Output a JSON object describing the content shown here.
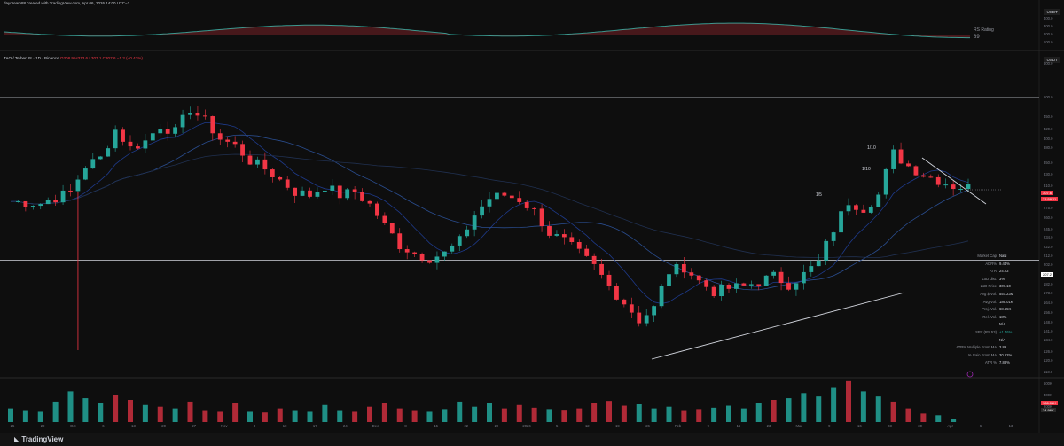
{
  "header": {
    "created_text": "daydream88 created with TradingView.com, Apr 06, 2026 14:00 UTC−2"
  },
  "top_panel": {
    "unit": "USDT",
    "rs_label": "RS Rating",
    "rs_value": "89",
    "ticks": [
      "400.0",
      "300.0",
      "200.0",
      "100.0"
    ]
  },
  "main_panel": {
    "unit": "USDT",
    "symbol": "TAO / TetherUS · 1D · Binance",
    "ohlc": "O308.9 H313.6 L307.1 C307.6 −1.3 (−0.42%)",
    "y_ticks": [
      "600.0",
      "500.0",
      "450.0",
      "420.0",
      "400.0",
      "380.0",
      "350.0",
      "330.0",
      "310.0",
      "290.0",
      "275.0",
      "260.0",
      "245.0",
      "234.0",
      "222.0",
      "212.0",
      "202.0",
      "192.0",
      "182.0",
      "173.0",
      "164.0",
      "156.0",
      "148.0",
      "141.0",
      "134.0",
      "126.0",
      "120.0",
      "113.0"
    ],
    "price_tags": [
      {
        "label": "307.6",
        "color": "#f23645"
      },
      {
        "label": "21:59:11",
        "color": "#f23645"
      },
      {
        "label": "207.2",
        "color": "#ffffff"
      }
    ]
  },
  "stats": [
    {
      "k": "Market Cap",
      "v": "NaN"
    },
    {
      "k": "ADR%",
      "v": "9.44%"
    },
    {
      "k": "ATR",
      "v": "24.23"
    },
    {
      "k": "LoD dist.",
      "v": "3%"
    },
    {
      "k": "LoD Price",
      "v": "307.10"
    },
    {
      "k": "Avg $ Vol.",
      "v": "557.23M"
    },
    {
      "k": "Avg Vol.",
      "v": "186.01K"
    },
    {
      "k": "Proj. Vol.",
      "v": "68.65K"
    },
    {
      "k": "Rel. Vol.",
      "v": "18%"
    },
    {
      "k": "",
      "v": "N/A"
    },
    {
      "k": "SPY (RS 53)",
      "v": "+1.46%"
    },
    {
      "k": "",
      "v": "N/A"
    },
    {
      "k": "ATR% Multiple From MA",
      "v": "3.89"
    },
    {
      "k": "% Gain From MA",
      "v": "30.62%"
    },
    {
      "k": "ATR %",
      "v": "7.88%"
    }
  ],
  "volume_panel": {
    "ticks": [
      "600K",
      "400K",
      "200K"
    ],
    "tags": [
      "186.01K",
      "34.96K"
    ]
  },
  "annotations": [
    "1/10",
    "1/10",
    "1/5"
  ],
  "footer": {
    "brand": "TradingView"
  },
  "chart_data": {
    "type": "candlestick",
    "symbol": "TAO/USDT",
    "x_labels": [
      "25",
      "29",
      "Oct",
      "6",
      "13",
      "20",
      "27",
      "Nov",
      "3",
      "10",
      "17",
      "24",
      "Dec",
      "8",
      "15",
      "22",
      "29",
      "2026",
      "5",
      "12",
      "19",
      "26",
      "Feb",
      "9",
      "16",
      "23",
      "Mar",
      "9",
      "16",
      "23",
      "30",
      "Apr",
      "6",
      "13"
    ],
    "horizontal_levels": [
      500.0,
      207.2
    ],
    "ylim": [
      113,
      600
    ],
    "close_path_approx": [
      [
        0,
        285
      ],
      [
        4,
        282
      ],
      [
        8,
        300
      ],
      [
        10,
        345
      ],
      [
        12,
        360
      ],
      [
        14,
        420
      ],
      [
        16,
        380
      ],
      [
        18,
        395
      ],
      [
        20,
        430
      ],
      [
        22,
        415
      ],
      [
        24,
        470
      ],
      [
        26,
        440
      ],
      [
        28,
        400
      ],
      [
        30,
        385
      ],
      [
        32,
        355
      ],
      [
        34,
        340
      ],
      [
        36,
        320
      ],
      [
        38,
        300
      ],
      [
        40,
        295
      ],
      [
        42,
        310
      ],
      [
        44,
        295
      ],
      [
        46,
        300
      ],
      [
        48,
        280
      ],
      [
        50,
        250
      ],
      [
        52,
        225
      ],
      [
        54,
        215
      ],
      [
        56,
        210
      ],
      [
        58,
        215
      ],
      [
        60,
        230
      ],
      [
        62,
        265
      ],
      [
        64,
        290
      ],
      [
        66,
        295
      ],
      [
        68,
        288
      ],
      [
        70,
        270
      ],
      [
        72,
        240
      ],
      [
        74,
        230
      ],
      [
        76,
        215
      ],
      [
        78,
        200
      ],
      [
        80,
        180
      ],
      [
        82,
        165
      ],
      [
        84,
        150
      ],
      [
        86,
        160
      ],
      [
        88,
        195
      ],
      [
        90,
        200
      ],
      [
        92,
        185
      ],
      [
        94,
        175
      ],
      [
        96,
        178
      ],
      [
        98,
        180
      ],
      [
        100,
        185
      ],
      [
        102,
        190
      ],
      [
        104,
        182
      ],
      [
        106,
        192
      ],
      [
        108,
        205
      ],
      [
        110,
        245
      ],
      [
        112,
        285
      ],
      [
        114,
        275
      ],
      [
        116,
        295
      ],
      [
        118,
        370
      ],
      [
        120,
        345
      ],
      [
        122,
        330
      ],
      [
        124,
        320
      ],
      [
        126,
        310
      ],
      [
        128,
        307.6
      ]
    ],
    "volume_approx": [
      40,
      35,
      30,
      60,
      90,
      70,
      55,
      80,
      65,
      50,
      45,
      40,
      60,
      35,
      30,
      55,
      30,
      28,
      40,
      35,
      30,
      50,
      35,
      30,
      45,
      55,
      40,
      35,
      30,
      38,
      60,
      45,
      55,
      40,
      50,
      42,
      38,
      36,
      40,
      55,
      62,
      48,
      52,
      40,
      45,
      35,
      38,
      42,
      48,
      40,
      55,
      65,
      70,
      85,
      75,
      100,
      120,
      90,
      75,
      60,
      40,
      25,
      20,
      10
    ]
  }
}
